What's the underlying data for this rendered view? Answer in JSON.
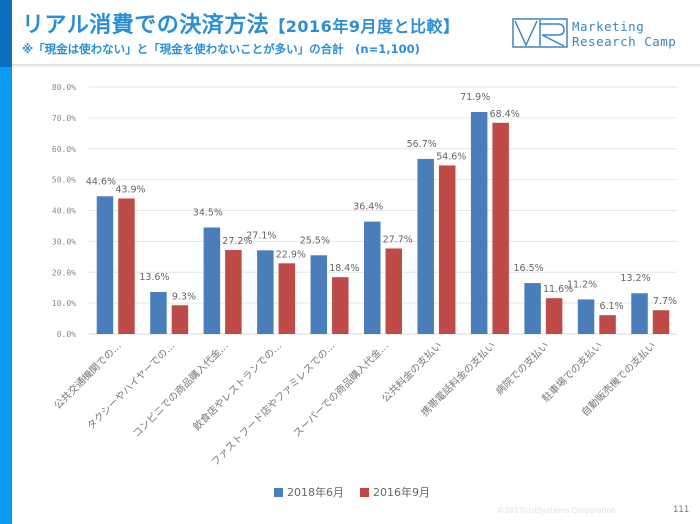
{
  "header": {
    "title_main": "リアル消費での決済方法",
    "title_sub": "【2016年9月度と比較】",
    "subtitle": "※「現金は使わない」と「現金を使わないことが多い」の合計　(n=1,100)",
    "logo_line1": "Marketing",
    "logo_line2": "Research Camp"
  },
  "colors": {
    "accent_dark": "#0b6fc0",
    "accent": "#0a9bf2",
    "title": "#2a8fd6",
    "series_2018": "#4a7ebb",
    "series_2016": "#be4b48"
  },
  "chart_data": {
    "type": "bar",
    "title": "",
    "xlabel": "",
    "ylabel": "",
    "ylim": [
      0,
      80
    ],
    "yticks": [
      "0.0%",
      "10.0%",
      "20.0%",
      "30.0%",
      "40.0%",
      "50.0%",
      "60.0%",
      "70.0%",
      "80.0%"
    ],
    "grid": true,
    "legend_position": "bottom",
    "categories": [
      "公共交通機関での…",
      "タクシーやハイヤーでの…",
      "コンビニでの商品購入代金…",
      "飲食店やレストランでの…",
      "ファストフード店やファミレスでの…",
      "スーパーでの商品購入代金…",
      "公共料金の支払い",
      "携帯電話料金の支払い",
      "病院での支払い",
      "駐車場での支払い",
      "自動販売機での支払い"
    ],
    "series": [
      {
        "name": "2018年6月",
        "color": "#4a7ebb",
        "values": [
          44.6,
          13.6,
          34.5,
          27.1,
          25.5,
          36.4,
          56.7,
          71.9,
          16.5,
          11.2,
          13.2
        ]
      },
      {
        "name": "2016年9月",
        "color": "#be4b48",
        "values": [
          43.9,
          9.3,
          27.2,
          22.9,
          18.4,
          27.7,
          54.6,
          68.4,
          11.6,
          6.1,
          7.7
        ]
      }
    ]
  },
  "footer": {
    "copyright": "©2017JustSystems Corporation",
    "page_number": "111"
  }
}
